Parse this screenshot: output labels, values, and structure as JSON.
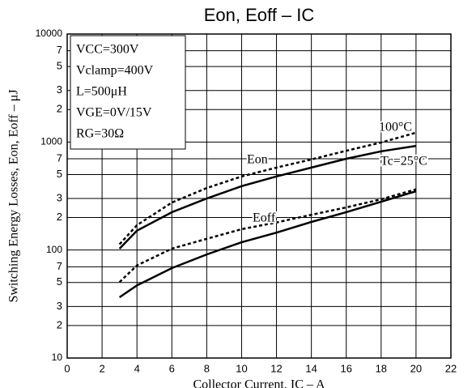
{
  "chart_data": {
    "type": "line",
    "title": "Eon, Eoff – IC",
    "x_label": "Collector Current, IC – A",
    "y_label": "Switching Energy Losses, Eon, Eoff – μJ",
    "conditions": [
      "VCC=300V",
      "Vclamp=400V",
      "L=500μH",
      "VGE=0V/15V",
      "RG=30Ω"
    ],
    "annotations": [
      "Eon",
      "Eoff",
      "100°C",
      "Tc=25°C"
    ],
    "x": [
      3,
      4,
      6,
      8,
      10,
      12,
      14,
      16,
      18,
      20
    ],
    "series": [
      {
        "color": "#000000",
        "line_style": "solid",
        "values": [
          103,
          151,
          224,
          300,
          390,
          480,
          580,
          700,
          820,
          920
        ]
      },
      {
        "color": "#000000",
        "line_style": "dashed",
        "values": [
          113,
          170,
          275,
          375,
          480,
          580,
          690,
          830,
          990,
          1220
        ]
      },
      {
        "color": "#000000",
        "line_style": "solid",
        "values": [
          36.5,
          47,
          68,
          91,
          118,
          145,
          182,
          224,
          280,
          350
        ]
      },
      {
        "color": "#000000",
        "line_style": "dashed",
        "values": [
          50.5,
          72,
          103,
          127,
          156,
          180,
          212,
          248,
          295,
          365
        ]
      }
    ],
    "xlim": [
      0,
      22
    ],
    "xticks": [
      0,
      2,
      4,
      6,
      8,
      10,
      12,
      14,
      16,
      18,
      20,
      22
    ],
    "ylim": [
      10,
      10000
    ],
    "y_scale": "log",
    "yticks": [
      10,
      {
        "value": 20,
        "label": "2"
      },
      {
        "value": 30,
        "label": "3"
      },
      {
        "value": 50,
        "label": "5"
      },
      {
        "value": 70,
        "label": "7"
      },
      100,
      {
        "value": 200,
        "label": "2"
      },
      {
        "value": 300,
        "label": "3"
      },
      {
        "value": 500,
        "label": "5"
      },
      {
        "value": 700,
        "label": "7"
      },
      1000,
      {
        "value": 2000,
        "label": "2"
      },
      {
        "value": 3000,
        "label": "3"
      },
      {
        "value": 5000,
        "label": "5"
      },
      {
        "value": 7000,
        "label": "7"
      },
      10000
    ],
    "grid": true
  }
}
